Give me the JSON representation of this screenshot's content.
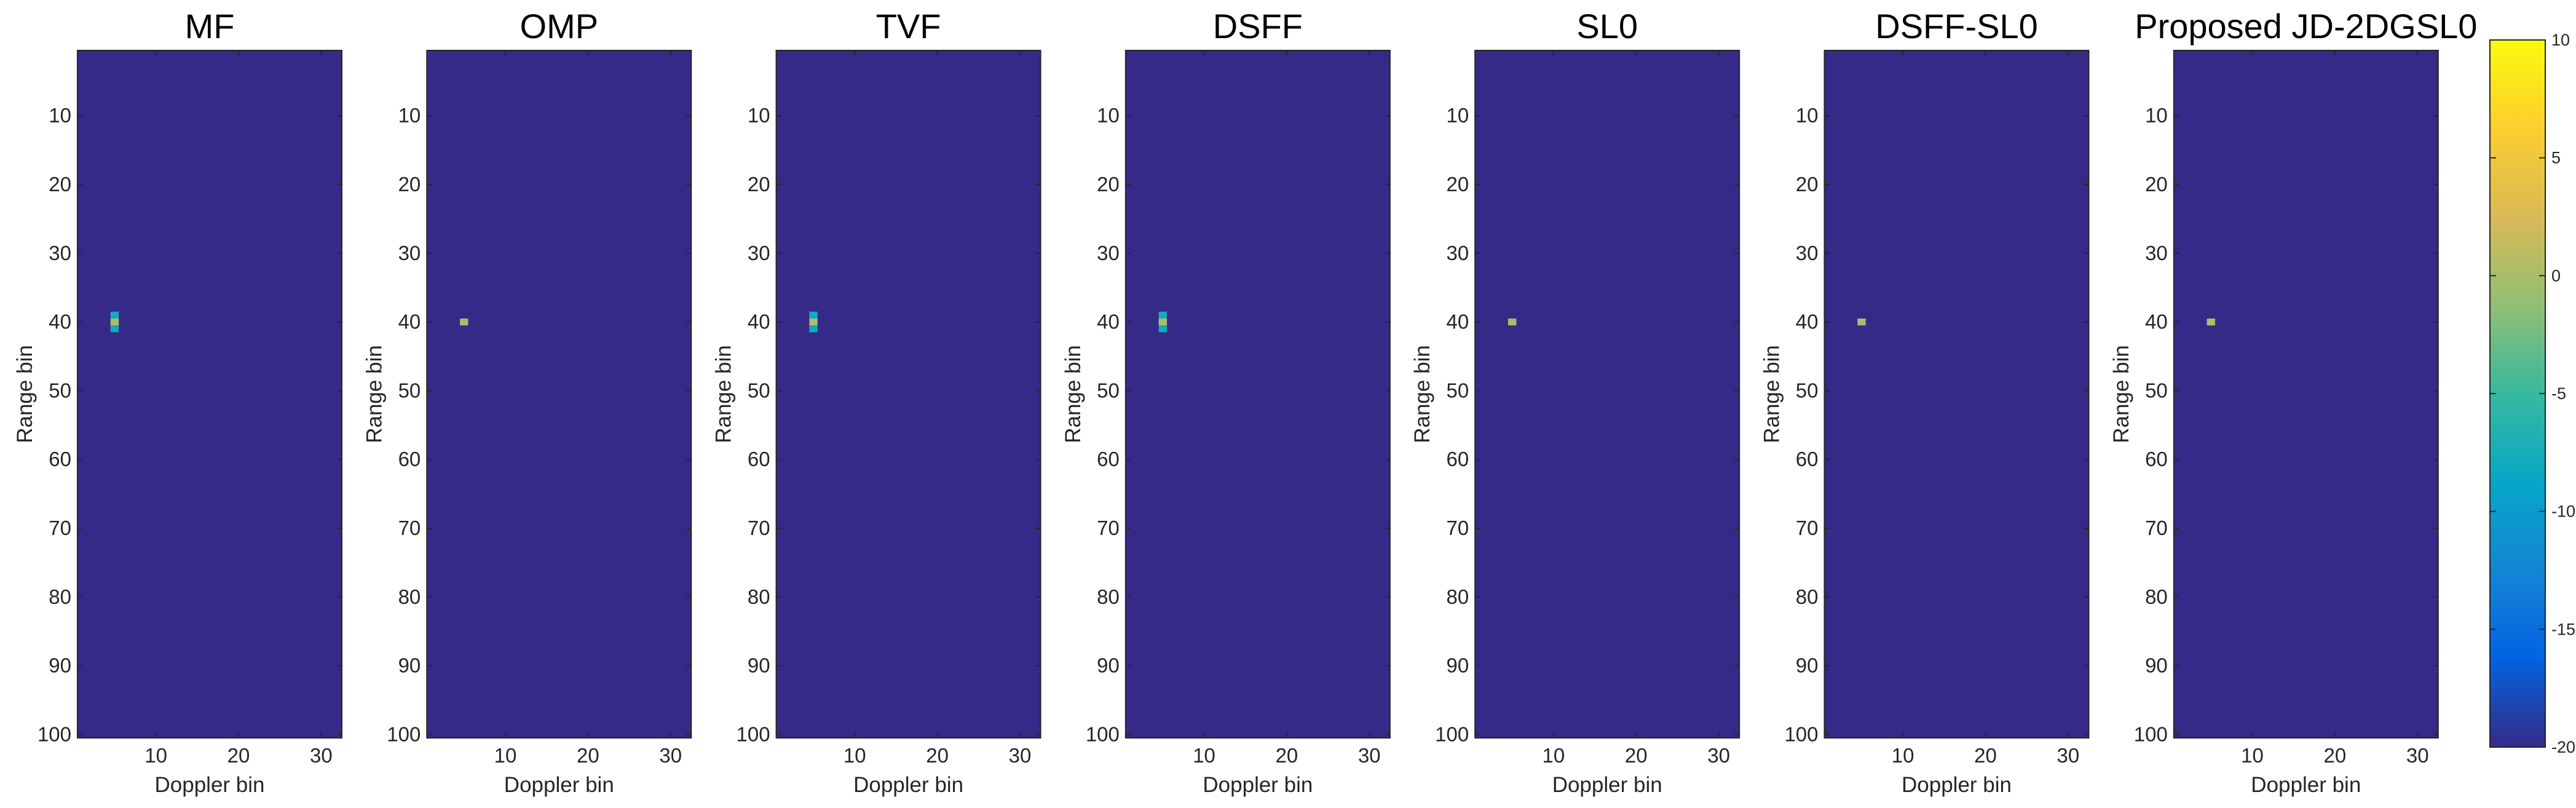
{
  "chart_data": [
    {
      "type": "heatmap",
      "title": "MF",
      "xlabel": "Doppler bin",
      "ylabel": "Range bin",
      "x_range": [
        1,
        32
      ],
      "y_range": [
        1,
        100
      ],
      "y_reversed": true,
      "x_ticks": [
        10,
        20,
        30
      ],
      "y_ticks": [
        10,
        20,
        30,
        40,
        50,
        60,
        70,
        80,
        90,
        100
      ],
      "background_value": -20,
      "cells": [
        {
          "x": 5,
          "y": 39,
          "value": -8
        },
        {
          "x": 5,
          "y": 40,
          "value": 0
        },
        {
          "x": 5,
          "y": 41,
          "value": -8
        }
      ]
    },
    {
      "type": "heatmap",
      "title": "OMP",
      "xlabel": "Doppler bin",
      "ylabel": "Range bin",
      "x_range": [
        1,
        32
      ],
      "y_range": [
        1,
        100
      ],
      "y_reversed": true,
      "x_ticks": [
        10,
        20,
        30
      ],
      "y_ticks": [
        10,
        20,
        30,
        40,
        50,
        60,
        70,
        80,
        90,
        100
      ],
      "background_value": -20,
      "cells": [
        {
          "x": 5,
          "y": 40,
          "value": 0
        }
      ]
    },
    {
      "type": "heatmap",
      "title": "TVF",
      "xlabel": "Doppler bin",
      "ylabel": "Range bin",
      "x_range": [
        1,
        32
      ],
      "y_range": [
        1,
        100
      ],
      "y_reversed": true,
      "x_ticks": [
        10,
        20,
        30
      ],
      "y_ticks": [
        10,
        20,
        30,
        40,
        50,
        60,
        70,
        80,
        90,
        100
      ],
      "background_value": -20,
      "cells": [
        {
          "x": 5,
          "y": 39,
          "value": -8
        },
        {
          "x": 5,
          "y": 40,
          "value": 0
        },
        {
          "x": 5,
          "y": 41,
          "value": -8
        }
      ]
    },
    {
      "type": "heatmap",
      "title": "DSFF",
      "xlabel": "Doppler bin",
      "ylabel": "Range bin",
      "x_range": [
        1,
        32
      ],
      "y_range": [
        1,
        100
      ],
      "y_reversed": true,
      "x_ticks": [
        10,
        20,
        30
      ],
      "y_ticks": [
        10,
        20,
        30,
        40,
        50,
        60,
        70,
        80,
        90,
        100
      ],
      "background_value": -20,
      "cells": [
        {
          "x": 5,
          "y": 39,
          "value": -8
        },
        {
          "x": 5,
          "y": 40,
          "value": 0
        },
        {
          "x": 5,
          "y": 41,
          "value": -8
        }
      ]
    },
    {
      "type": "heatmap",
      "title": "SL0",
      "xlabel": "Doppler bin",
      "ylabel": "Range bin",
      "x_range": [
        1,
        32
      ],
      "y_range": [
        1,
        100
      ],
      "y_reversed": true,
      "x_ticks": [
        10,
        20,
        30
      ],
      "y_ticks": [
        10,
        20,
        30,
        40,
        50,
        60,
        70,
        80,
        90,
        100
      ],
      "background_value": -20,
      "cells": [
        {
          "x": 5,
          "y": 40,
          "value": 0
        }
      ]
    },
    {
      "type": "heatmap",
      "title": "DSFF-SL0",
      "xlabel": "Doppler bin",
      "ylabel": "Range bin",
      "x_range": [
        1,
        32
      ],
      "y_range": [
        1,
        100
      ],
      "y_reversed": true,
      "x_ticks": [
        10,
        20,
        30
      ],
      "y_ticks": [
        10,
        20,
        30,
        40,
        50,
        60,
        70,
        80,
        90,
        100
      ],
      "background_value": -20,
      "cells": [
        {
          "x": 5,
          "y": 40,
          "value": 0
        }
      ]
    },
    {
      "type": "heatmap",
      "title": "Proposed JD-2DGSL0",
      "xlabel": "Doppler bin",
      "ylabel": "Range bin",
      "x_range": [
        1,
        32
      ],
      "y_range": [
        1,
        100
      ],
      "y_reversed": true,
      "x_ticks": [
        10,
        20,
        30
      ],
      "y_ticks": [
        10,
        20,
        30,
        40,
        50,
        60,
        70,
        80,
        90,
        100
      ],
      "background_value": -20,
      "cells": [
        {
          "x": 5,
          "y": 40,
          "value": 0
        }
      ]
    }
  ],
  "colorbar": {
    "colormap": "parula",
    "range": [
      -20,
      10
    ],
    "ticks": [
      10,
      5,
      0,
      -5,
      -10,
      -15,
      -20
    ]
  }
}
